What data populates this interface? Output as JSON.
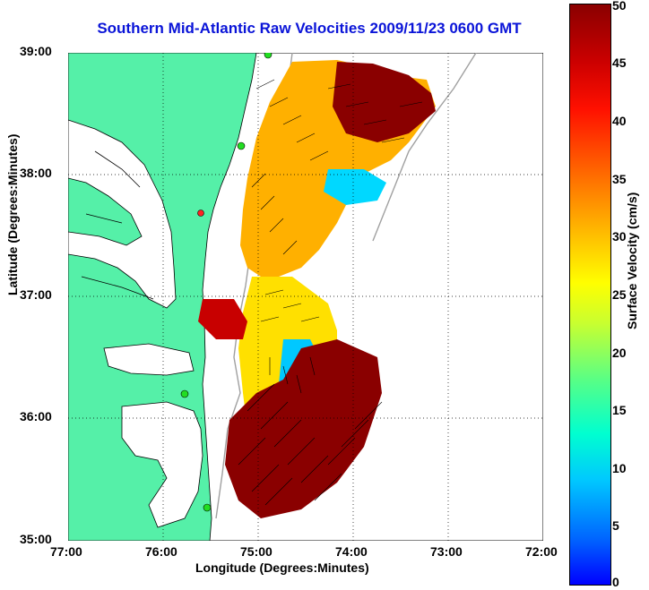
{
  "title": "Southern Mid-Atlantic Raw Velocities 2009/11/23 0600 GMT",
  "axes": {
    "xlabel": "Longitude (Degrees:Minutes)",
    "ylabel": "Latitude (Degrees:Minutes)",
    "xticks": [
      "77:00",
      "76:00",
      "75:00",
      "74:00",
      "73:00",
      "72:00"
    ],
    "yticks": [
      "39:00",
      "38:00",
      "37:00",
      "36:00",
      "35:00"
    ]
  },
  "colorbar": {
    "label": "Surface Velocity (cm/s)",
    "ticks": [
      "50",
      "45",
      "40",
      "35",
      "30",
      "25",
      "20",
      "15",
      "10",
      "5",
      "0"
    ]
  },
  "colors": {
    "land": "#55f0a8",
    "coast": "#000000",
    "title": "#0a14d8",
    "station": "#22dd22",
    "station_alt": "#ff2222"
  }
}
